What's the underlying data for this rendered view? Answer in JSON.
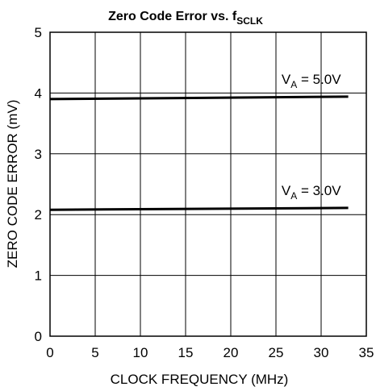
{
  "chart_data": {
    "type": "line",
    "title": {
      "main": "Zero Code Error vs. f",
      "sub": "SCLK"
    },
    "xlabel": "CLOCK FREQUENCY (MHz)",
    "ylabel": "ZERO CODE ERROR (mV)",
    "xlim": [
      0,
      35
    ],
    "ylim": [
      0,
      5
    ],
    "xticks": [
      "0",
      "5",
      "10",
      "15",
      "20",
      "25",
      "30",
      "35"
    ],
    "yticks": [
      "0",
      "1",
      "2",
      "3",
      "4",
      "5"
    ],
    "grid": true,
    "series": [
      {
        "name": {
          "base": "V",
          "sub": "A",
          "rest": " = 5.0V"
        },
        "x": [
          0,
          33
        ],
        "values": [
          3.9,
          3.94
        ]
      },
      {
        "name": {
          "base": "V",
          "sub": "A",
          "rest": " = 3.0V"
        },
        "x": [
          0,
          33
        ],
        "values": [
          2.08,
          2.11
        ]
      }
    ],
    "color": "#000000"
  }
}
